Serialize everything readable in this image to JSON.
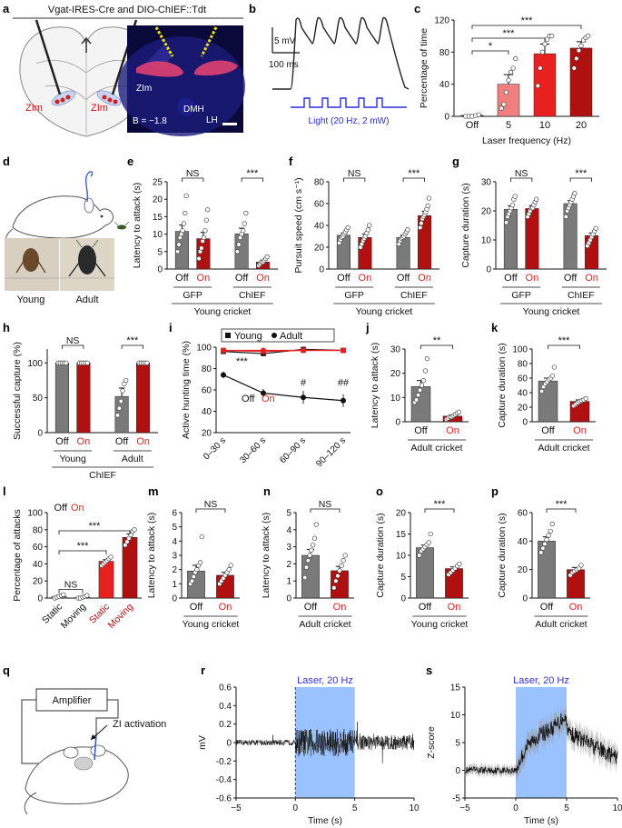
{
  "colors": {
    "grey": "#7a7a7a",
    "darkred": "#b01010",
    "red": "#e82020",
    "pink": "#f08080",
    "blue": "#3030e0",
    "lightblue": "#6fa8ff",
    "redlight": "#d12020"
  },
  "panels": {
    "a": {
      "label": "a",
      "title": "Vgat-IRES-Cre and DIO-ChIEF::Tdt",
      "left_zi_1": "ZIm",
      "left_zi_2": "ZIm",
      "img_zi": "ZIm",
      "img_dmh": "DMH",
      "img_lh": "LH",
      "img_bregma": "B = −1.8"
    },
    "b": {
      "label": "b",
      "scale_mv": "5 mV",
      "scale_ms": "100 ms",
      "light": "Light (20 Hz, 2 mW)"
    },
    "c": {
      "label": "c"
    },
    "d": {
      "label": "d",
      "young": "Young",
      "adult": "Adult"
    },
    "e": {
      "label": "e"
    },
    "f": {
      "label": "f"
    },
    "g": {
      "label": "g"
    },
    "h": {
      "label": "h"
    },
    "i": {
      "label": "i"
    },
    "j": {
      "label": "j"
    },
    "k": {
      "label": "k"
    },
    "l": {
      "label": "l"
    },
    "m": {
      "label": "m"
    },
    "n": {
      "label": "n"
    },
    "o": {
      "label": "o"
    },
    "p": {
      "label": "p"
    },
    "q": {
      "label": "q",
      "amplifier": "Amplifier",
      "activation": "ZI activation"
    },
    "r": {
      "label": "r"
    },
    "s": {
      "label": "s"
    }
  },
  "chart_data": [
    {
      "id": "c",
      "type": "bar",
      "ylabel": "Percentage of time",
      "xlabel": "Laser frequency (Hz)",
      "ylim": [
        0,
        120
      ],
      "yticks": [
        0,
        40,
        80,
        120
      ],
      "categories": [
        "Off",
        "5",
        "10",
        "20"
      ],
      "values": [
        1,
        40,
        78,
        85
      ],
      "errors": [
        1,
        12,
        12,
        8
      ],
      "fills": [
        "white",
        "pink",
        "red",
        "darkred"
      ],
      "points": [
        [
          0,
          0,
          0,
          1,
          2
        ],
        [
          10,
          15,
          30,
          45,
          55,
          60,
          72
        ],
        [
          38,
          60,
          80,
          90,
          96,
          100,
          100
        ],
        [
          60,
          72,
          82,
          88,
          95,
          98,
          100
        ]
      ],
      "sig": [
        {
          "from": 0,
          "to": 1,
          "label": "*"
        },
        {
          "from": 0,
          "to": 2,
          "label": "***"
        },
        {
          "from": 0,
          "to": 3,
          "label": "***"
        }
      ]
    },
    {
      "id": "e",
      "type": "bar",
      "ylabel": "Latency to attack (s)",
      "ylim": [
        0,
        25
      ],
      "yticks": [
        0,
        5,
        10,
        15,
        20,
        25
      ],
      "categories": [
        "Off",
        "On",
        "Off",
        "On"
      ],
      "values": [
        10.8,
        8.7,
        10.1,
        2.0
      ],
      "errors": [
        1.8,
        1.8,
        1.6,
        0.5
      ],
      "fills": [
        "grey",
        "darkred",
        "grey",
        "darkred"
      ],
      "points": [
        [
          5,
          7,
          9,
          10,
          11,
          13,
          16,
          21
        ],
        [
          3,
          5,
          6,
          8,
          9,
          11,
          14,
          17
        ],
        [
          5,
          7,
          9,
          10,
          11,
          13,
          16
        ],
        [
          1,
          1.5,
          2,
          2,
          2.5,
          3,
          3.5
        ]
      ],
      "groups": [
        {
          "label": "GFP",
          "from": 0,
          "to": 1
        },
        {
          "label": "ChIEF",
          "from": 2,
          "to": 3
        }
      ],
      "footer": "Young cricket",
      "sig": [
        {
          "from": 0,
          "to": 1,
          "label": "NS"
        },
        {
          "from": 2,
          "to": 3,
          "label": "***"
        }
      ]
    },
    {
      "id": "f",
      "type": "bar",
      "ylabel": "Pursuit speed (cm s⁻¹)",
      "ylim": [
        0,
        80
      ],
      "yticks": [
        0,
        20,
        40,
        60,
        80
      ],
      "categories": [
        "Off",
        "On",
        "Off",
        "On"
      ],
      "values": [
        31,
        29,
        29,
        49
      ],
      "errors": [
        2,
        3,
        2,
        4
      ],
      "fills": [
        "grey",
        "darkred",
        "grey",
        "darkred"
      ],
      "points": [
        [
          24,
          27,
          29,
          30,
          32,
          34,
          36,
          38
        ],
        [
          20,
          23,
          26,
          28,
          30,
          33,
          36,
          40
        ],
        [
          23,
          26,
          28,
          29,
          30,
          32,
          34,
          36
        ],
        [
          38,
          42,
          46,
          48,
          50,
          52,
          55,
          58,
          65
        ]
      ],
      "groups": [
        {
          "label": "GFP",
          "from": 0,
          "to": 1
        },
        {
          "label": "ChIEF",
          "from": 2,
          "to": 3
        }
      ],
      "footer": "Young cricket",
      "sig": [
        {
          "from": 0,
          "to": 1,
          "label": "NS"
        },
        {
          "from": 2,
          "to": 3,
          "label": "***"
        }
      ]
    },
    {
      "id": "g",
      "type": "bar",
      "ylabel": "Capture duration (s)",
      "ylim": [
        0,
        30
      ],
      "yticks": [
        0,
        10,
        20,
        30
      ],
      "categories": [
        "Off",
        "On",
        "Off",
        "On"
      ],
      "values": [
        20.5,
        20.8,
        22.5,
        11.5
      ],
      "errors": [
        1.2,
        1.0,
        1.0,
        0.9
      ],
      "fills": [
        "grey",
        "darkred",
        "grey",
        "darkred"
      ],
      "points": [
        [
          16,
          18,
          19,
          20,
          21,
          22,
          24,
          25
        ],
        [
          18,
          19,
          20,
          21,
          21,
          22,
          23,
          24
        ],
        [
          18,
          20,
          21,
          22,
          23,
          24,
          25,
          26
        ],
        [
          8,
          9,
          10,
          11,
          12,
          13,
          14
        ]
      ],
      "groups": [
        {
          "label": "GFP",
          "from": 0,
          "to": 1
        },
        {
          "label": "ChIEF",
          "from": 2,
          "to": 3
        }
      ],
      "footer": "Young cricket",
      "sig": [
        {
          "from": 0,
          "to": 1,
          "label": "NS"
        },
        {
          "from": 2,
          "to": 3,
          "label": "***"
        }
      ]
    },
    {
      "id": "h",
      "type": "bar",
      "ylabel": "Successful capture (%)",
      "ylim": [
        0,
        120
      ],
      "yticks": [
        0,
        50,
        100
      ],
      "categories": [
        "Off",
        "On",
        "Off",
        "On"
      ],
      "values": [
        100,
        100,
        52,
        100
      ],
      "errors": [
        0,
        0,
        12,
        0
      ],
      "fills": [
        "grey",
        "darkred",
        "grey",
        "darkred"
      ],
      "points": [
        [
          100,
          100,
          100,
          100,
          100
        ],
        [
          100,
          100,
          100,
          100,
          100
        ],
        [
          25,
          35,
          45,
          60,
          70,
          75
        ],
        [
          100,
          100,
          100,
          100,
          100
        ]
      ],
      "groups": [
        {
          "label": "Young",
          "from": 0,
          "to": 1
        },
        {
          "label": "Adult",
          "from": 2,
          "to": 3
        }
      ],
      "footer": "ChIEF",
      "sig": [
        {
          "from": 0,
          "to": 1,
          "label": "NS"
        },
        {
          "from": 2,
          "to": 3,
          "label": "***"
        }
      ]
    },
    {
      "id": "i",
      "type": "line",
      "ylabel": "Active hunting time (%)",
      "ylim": [
        20,
        100
      ],
      "yticks": [
        20,
        40,
        60,
        80,
        100
      ],
      "categories": [
        "0–30 s",
        "30–60 s",
        "60–90 s",
        "90–120 s"
      ],
      "legend": [
        "Young",
        "Adult"
      ],
      "offon": [
        "Off",
        "On"
      ],
      "series": [
        {
          "name": "Young Off",
          "marker": "square",
          "color": "black",
          "values": [
            96,
            94,
            98,
            97
          ],
          "errors": [
            1,
            1,
            1,
            1
          ]
        },
        {
          "name": "Young On",
          "marker": "square",
          "color": "red",
          "values": [
            97,
            96,
            97,
            97
          ],
          "errors": [
            1,
            1,
            1,
            1
          ]
        },
        {
          "name": "Adult Off",
          "marker": "circle",
          "color": "black",
          "values": [
            74,
            57,
            53,
            50
          ],
          "errors": [
            3,
            4,
            6,
            6
          ]
        },
        {
          "name": "Adult On",
          "marker": "circle",
          "color": "red",
          "values": [
            97,
            97,
            97,
            97
          ],
          "errors": [
            1,
            1,
            1,
            1
          ]
        }
      ],
      "annotations": [
        {
          "x": 0,
          "y": 84,
          "label": "***"
        },
        {
          "x": 2,
          "y": 64,
          "label": "#"
        },
        {
          "x": 3,
          "y": 64,
          "label": "##"
        }
      ]
    },
    {
      "id": "j",
      "type": "bar",
      "ylabel": "Latency to attack (s)",
      "ylim": [
        0,
        30
      ],
      "yticks": [
        0,
        10,
        20,
        30
      ],
      "categories": [
        "Off",
        "On"
      ],
      "values": [
        14.5,
        2.3
      ],
      "errors": [
        2.5,
        0.5
      ],
      "fills": [
        "grey",
        "darkred"
      ],
      "points": [
        [
          8,
          9,
          11,
          13,
          15,
          17,
          21,
          26
        ],
        [
          1,
          1.5,
          2,
          2,
          2.5,
          3,
          3.5,
          4
        ]
      ],
      "footer": "Adult cricket",
      "sig": [
        {
          "from": 0,
          "to": 1,
          "label": "**"
        }
      ]
    },
    {
      "id": "k",
      "type": "bar",
      "ylabel": "Capture duration (s)",
      "ylim": [
        0,
        100
      ],
      "yticks": [
        0,
        20,
        40,
        60,
        80,
        100
      ],
      "categories": [
        "Off",
        "On"
      ],
      "values": [
        56,
        28
      ],
      "errors": [
        4,
        2
      ],
      "fills": [
        "grey",
        "darkred"
      ],
      "points": [
        [
          42,
          48,
          52,
          55,
          58,
          60,
          63,
          75
        ],
        [
          22,
          24,
          26,
          28,
          29,
          30,
          32
        ]
      ],
      "footer": "Adult cricket",
      "sig": [
        {
          "from": 0,
          "to": 1,
          "label": "***"
        }
      ]
    },
    {
      "id": "l",
      "type": "bar",
      "ylabel": "Percentage of attacks",
      "ylim": [
        0,
        100
      ],
      "yticks": [
        0,
        20,
        40,
        60,
        80,
        100
      ],
      "categories": [
        "Static",
        "Moving",
        "Static",
        "Moving"
      ],
      "values": [
        2,
        1,
        43,
        71
      ],
      "errors": [
        1,
        1,
        2,
        4
      ],
      "fills": [
        "grey",
        "grey",
        "red",
        "darkred"
      ],
      "points": [
        [
          0,
          1,
          2,
          3,
          4
        ],
        [
          0,
          0,
          1,
          2,
          3
        ],
        [
          38,
          40,
          42,
          44,
          46,
          48
        ],
        [
          62,
          66,
          70,
          74,
          78,
          80
        ]
      ],
      "offon": [
        "Off",
        "On"
      ],
      "sig": [
        {
          "from": 0,
          "to": 1,
          "label": "NS"
        },
        {
          "from": 0,
          "to": 2,
          "label": "***"
        },
        {
          "from": 0,
          "to": 3,
          "label": "***"
        }
      ]
    },
    {
      "id": "m",
      "type": "bar",
      "ylabel": "Latency to attack (s)",
      "ylim": [
        0,
        6
      ],
      "yticks": [
        0,
        1,
        2,
        3,
        4,
        5,
        6
      ],
      "categories": [
        "Off",
        "On"
      ],
      "values": [
        1.9,
        1.6
      ],
      "errors": [
        0.4,
        0.2
      ],
      "fills": [
        "grey",
        "darkred"
      ],
      "points": [
        [
          1,
          1.2,
          1.5,
          1.8,
          2,
          2.3,
          2.5,
          4.3
        ],
        [
          1,
          1.2,
          1.4,
          1.6,
          1.8,
          2,
          2.3
        ]
      ],
      "footer": "Young cricket",
      "sig": [
        {
          "from": 0,
          "to": 1,
          "label": "NS"
        }
      ]
    },
    {
      "id": "n",
      "type": "bar",
      "ylabel": "Latency to attack (s)",
      "ylim": [
        0,
        5
      ],
      "yticks": [
        0,
        1,
        2,
        3,
        4,
        5
      ],
      "categories": [
        "Off",
        "On"
      ],
      "values": [
        2.5,
        1.6
      ],
      "errors": [
        0.35,
        0.25
      ],
      "fills": [
        "grey",
        "darkred"
      ],
      "points": [
        [
          1.2,
          1.8,
          2.2,
          2.5,
          2.8,
          3.1,
          3.5,
          4.3
        ],
        [
          0.6,
          1,
          1.3,
          1.6,
          1.9,
          2.2,
          2.5
        ]
      ],
      "footer": "Adult cricket",
      "sig": [
        {
          "from": 0,
          "to": 1,
          "label": "NS"
        }
      ]
    },
    {
      "id": "o",
      "type": "bar",
      "ylabel": "Capture duration (s)",
      "ylim": [
        0,
        20
      ],
      "yticks": [
        0,
        5,
        10,
        15,
        20
      ],
      "categories": [
        "Off",
        "On"
      ],
      "values": [
        11.8,
        6.9
      ],
      "errors": [
        0.6,
        0.4
      ],
      "fills": [
        "grey",
        "darkred"
      ],
      "points": [
        [
          10,
          11,
          11.5,
          12,
          12.5,
          13,
          15
        ],
        [
          5.5,
          6,
          6.5,
          7,
          7.5,
          8
        ]
      ],
      "footer": "Young cricket",
      "sig": [
        {
          "from": 0,
          "to": 1,
          "label": "***"
        }
      ]
    },
    {
      "id": "p",
      "type": "bar",
      "ylabel": "Capture duration (s)",
      "ylim": [
        0,
        60
      ],
      "yticks": [
        0,
        20,
        40,
        60
      ],
      "categories": [
        "Off",
        "On"
      ],
      "values": [
        40,
        20
      ],
      "errors": [
        3,
        1.5
      ],
      "fills": [
        "grey",
        "darkred"
      ],
      "points": [
        [
          32,
          35,
          38,
          41,
          44,
          47,
          52
        ],
        [
          16,
          18,
          19,
          20,
          21,
          23
        ]
      ],
      "footer": "Adult cricket",
      "sig": [
        {
          "from": 0,
          "to": 1,
          "label": "***"
        }
      ]
    },
    {
      "id": "r",
      "type": "line",
      "ylabel": "mV",
      "xlabel": "Time (s)",
      "xlim": [
        -5,
        10
      ],
      "ylim": [
        -0.6,
        0.6
      ],
      "xticks": [
        -5,
        0,
        5,
        10
      ],
      "yticks": [
        -0.6,
        -0.4,
        -0.2,
        0,
        0.2,
        0.4,
        0.6
      ],
      "laser": {
        "label": "Laser, 20 Hz",
        "x0": 0,
        "x1": 5
      },
      "noise": {
        "baseline": 0.03,
        "laser": 0.15,
        "post": 0.08
      }
    },
    {
      "id": "s",
      "type": "line",
      "ylabel": "Z-score",
      "xlabel": "Time (s)",
      "xlim": [
        -5,
        10
      ],
      "ylim": [
        -5,
        15
      ],
      "xticks": [
        -5,
        0,
        5,
        10
      ],
      "yticks": [
        -5,
        0,
        5,
        10,
        15
      ],
      "laser": {
        "label": "Laser, 20 Hz",
        "x0": 0,
        "x1": 5
      },
      "trace": {
        "x": [
          -5,
          -2,
          0,
          0.5,
          1,
          2,
          3,
          4,
          4.8,
          5.2,
          6,
          7,
          8,
          9,
          10
        ],
        "y": [
          0,
          0,
          0,
          2,
          4,
          6,
          7,
          8,
          10,
          7,
          6,
          5,
          4,
          3,
          2
        ]
      }
    }
  ]
}
